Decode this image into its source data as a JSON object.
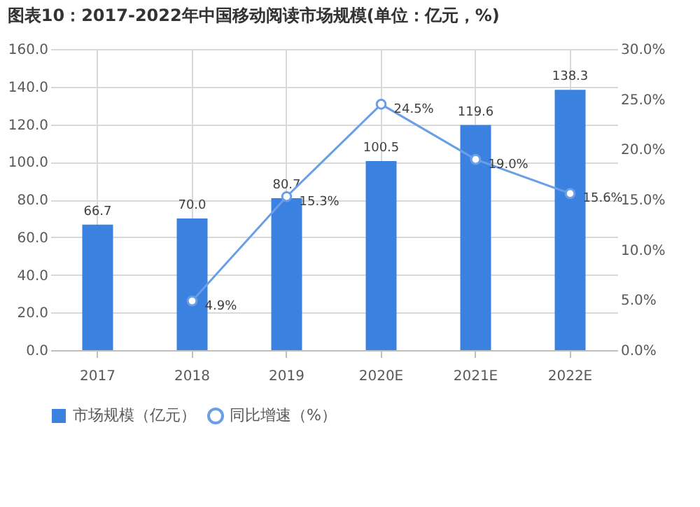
{
  "chart_data": {
    "type": "bar",
    "title": "图表10：2017-2022年中国移动阅读市场规模(单位：亿元，%)",
    "categories": [
      "2017",
      "2018",
      "2019",
      "2020E",
      "2021E",
      "2022E"
    ],
    "series": [
      {
        "name": "市场规模（亿元）",
        "color": "#3b82e0",
        "values": [
          66.7,
          70.0,
          80.7,
          100.5,
          119.6,
          138.3
        ],
        "value_labels": [
          "66.7",
          "70.0",
          "80.7",
          "100.5",
          "119.6",
          "138.3"
        ]
      },
      {
        "name": "同比增速（%）",
        "type": "line",
        "axis": "y2",
        "color": "#6a9ee6",
        "values": [
          null,
          4.9,
          15.3,
          24.5,
          19.0,
          15.6
        ],
        "value_labels": [
          null,
          "4.9%",
          "15.3%",
          "24.5%",
          "19.0%",
          "15.6%"
        ]
      }
    ],
    "ylim": [
      0,
      160
    ],
    "yticks": [
      {
        "value": 0,
        "label": "0.0"
      },
      {
        "value": 20,
        "label": "20.0"
      },
      {
        "value": 40,
        "label": "40.0"
      },
      {
        "value": 60,
        "label": "60.0"
      },
      {
        "value": 80,
        "label": "80.0"
      },
      {
        "value": 100,
        "label": "100.0"
      },
      {
        "value": 120,
        "label": "120.0"
      },
      {
        "value": 140,
        "label": "140.0"
      },
      {
        "value": 160,
        "label": "160.0"
      }
    ],
    "y2lim": [
      0,
      30
    ],
    "y2ticks": [
      {
        "value": 0,
        "label": "0.0%"
      },
      {
        "value": 5,
        "label": "5.0%"
      },
      {
        "value": 10,
        "label": "10.0%"
      },
      {
        "value": 15,
        "label": "15.0%"
      },
      {
        "value": 20,
        "label": "20.0%"
      },
      {
        "value": 25,
        "label": "25.0%"
      },
      {
        "value": 30,
        "label": "30.0%"
      }
    ],
    "grid": true,
    "legend": "bottom",
    "marker": "circle"
  }
}
